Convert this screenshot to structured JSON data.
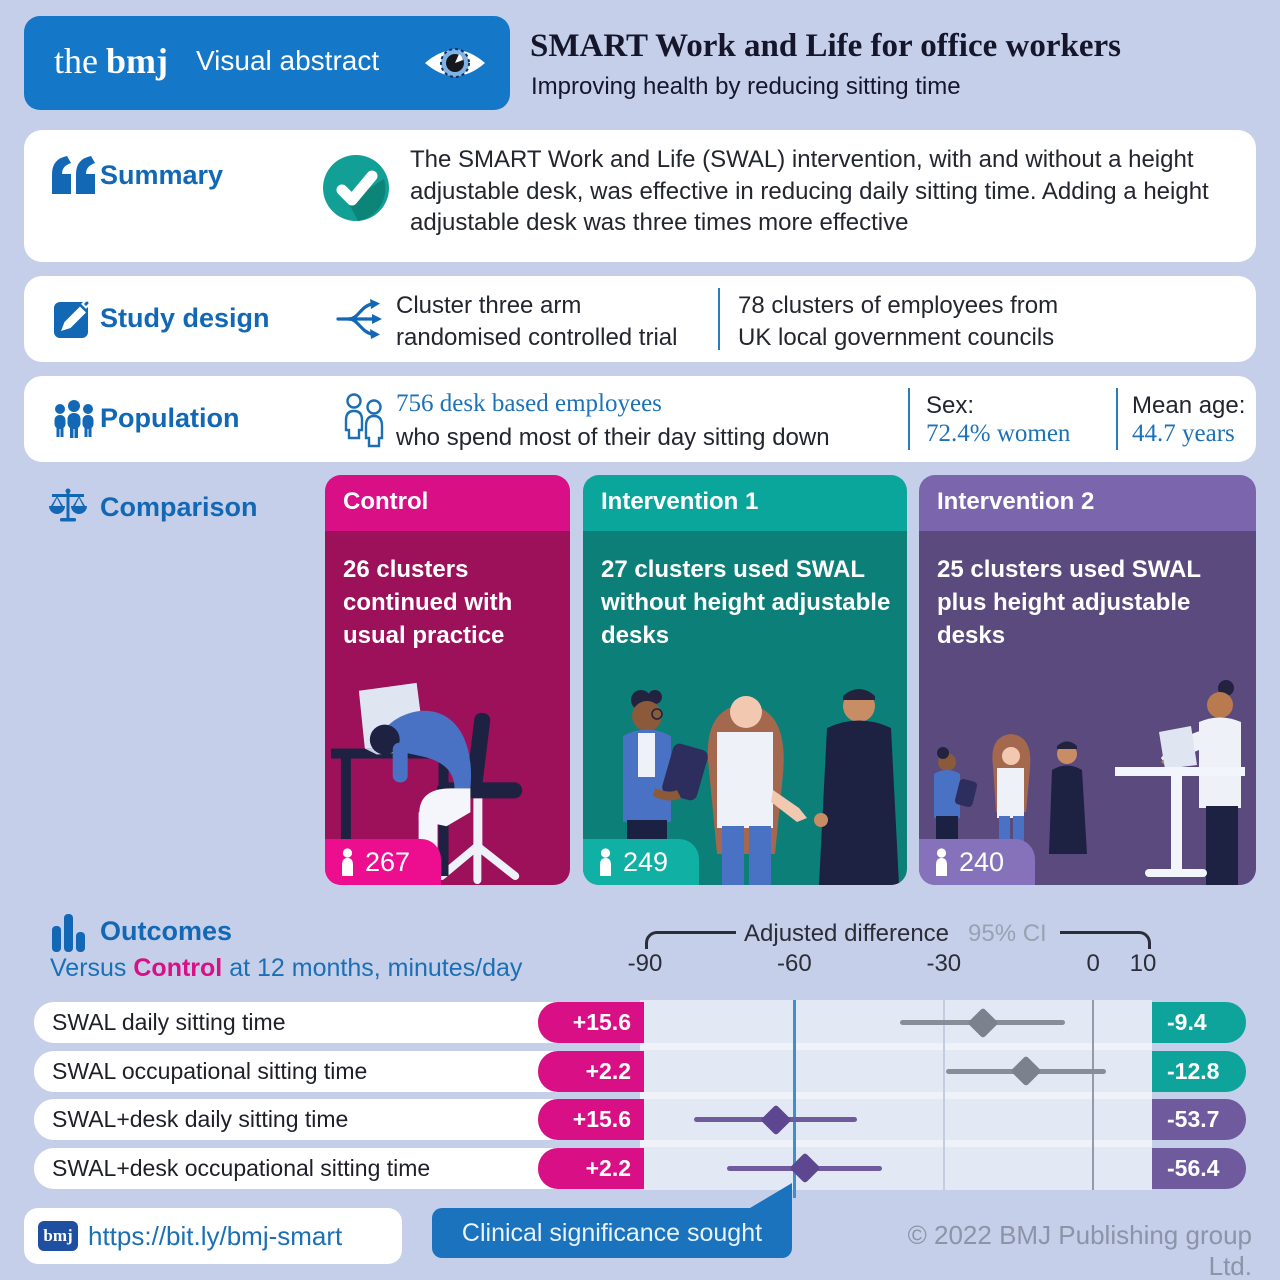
{
  "header": {
    "brand_the": "the",
    "brand_bmj": "bmj",
    "product": "Visual abstract",
    "title": "SMART Work and Life for office workers",
    "subtitle": "Improving health by reducing sitting time"
  },
  "summary": {
    "label": "Summary",
    "text": "The SMART Work and Life (SWAL) intervention, with and without a height adjustable desk, was effective in reducing daily sitting time. Adding a height adjustable desk was three times more effective"
  },
  "study_design": {
    "label": "Study design",
    "method_line1": "Cluster three arm",
    "method_line2": "randomised controlled trial",
    "clusters_line1": "78 clusters of employees from",
    "clusters_line2": "UK local government councils"
  },
  "population": {
    "label": "Population",
    "headline": "756 desk based employees",
    "description": "who spend most of their day sitting down",
    "sex_label": "Sex:",
    "sex_value": "72.4% women",
    "age_label": "Mean age:",
    "age_value": "44.7 years"
  },
  "comparison": {
    "label": "Comparison",
    "cards": [
      {
        "title": "Control",
        "desc": "26 clusters continued with usual practice",
        "count": "267",
        "header_color": "#d90f85",
        "body_color": "#9c1159",
        "badge_color": "#ec0e8f"
      },
      {
        "title": "Intervention 1",
        "desc": "27 clusters used SWAL without height adjustable desks",
        "count": "249",
        "header_color": "#0aa69c",
        "body_color": "#0c7f78",
        "badge_color": "#10b0a5"
      },
      {
        "title": "Intervention 2",
        "desc": "25 clusters used SWAL plus height adjustable desks",
        "count": "240",
        "header_color": "#7b66ae",
        "body_color": "#5b4a7e",
        "badge_color": "#8672bb"
      }
    ]
  },
  "outcomes": {
    "label": "Outcomes",
    "versus_prefix": "Versus ",
    "versus_control": "Control",
    "versus_suffix": " at 12 months, minutes/day",
    "axis_title": "Adjusted difference",
    "axis_ci": "95% CI"
  },
  "chart_data": {
    "type": "forest",
    "title": "Adjusted difference versus Control at 12 months, minutes/day",
    "unit": "minutes/day",
    "axis": {
      "min": -90,
      "max": 12,
      "ticks": [
        -90,
        -60,
        -30,
        0,
        10
      ],
      "reference_line": -60,
      "zero_line": 0,
      "minor_line": -30
    },
    "rows": [
      {
        "label": "SWAL daily sitting time",
        "control_change": "+15.6",
        "group_change": "-9.4",
        "estimate": -22.2,
        "ci_low": -38.8,
        "ci_high": -5.7,
        "group": "swal"
      },
      {
        "label": "SWAL occupational sitting time",
        "control_change": "+2.2",
        "group_change": "-12.8",
        "estimate": -13.5,
        "ci_low": -29.5,
        "ci_high": 2.5,
        "group": "swal"
      },
      {
        "label": "SWAL+desk daily sitting time",
        "control_change": "+15.6",
        "group_change": "-53.7",
        "estimate": -63.7,
        "ci_low": -80.1,
        "ci_high": -47.4,
        "group": "swal_desk"
      },
      {
        "label": "SWAL+desk occupational sitting time",
        "control_change": "+2.2",
        "group_change": "-56.4",
        "estimate": -57.8,
        "ci_low": -73.5,
        "ci_high": -42.5,
        "group": "swal_desk"
      }
    ],
    "style": {
      "left_pill_color": "#d90f85",
      "swal": {
        "line": "#878e98",
        "diamond": "#7b828d",
        "pill": "#0fa49b"
      },
      "swal_desk": {
        "line": "#6f5a9e",
        "diamond": "#5c4790",
        "pill": "#6f5a9e"
      },
      "panel_bg": "#e3e9f4",
      "reference_color": "#3f8ecd",
      "zero_color": "#949aa8",
      "minor_color": "#c3cddf"
    },
    "legend_position": "top",
    "grid": true
  },
  "footer": {
    "bmj_badge": "bmj",
    "link": "https://bit.ly/bmj-smart",
    "clinical": "Clinical significance sought",
    "copyright": "© 2022 BMJ Publishing group Ltd."
  },
  "colors": {
    "brand_blue": "#1477c8",
    "label_blue": "#1268b5",
    "magenta": "#d90f85",
    "teal": "#0fa49b",
    "purple": "#6f5a9e",
    "page_bg": "#c5cfe9"
  }
}
